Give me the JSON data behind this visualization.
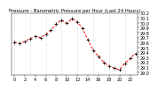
{
  "title": "Pressure - Barometric Pressure per Hour (Last 24 Hours)",
  "hours": [
    0,
    1,
    2,
    3,
    4,
    5,
    6,
    7,
    8,
    9,
    10,
    11,
    12,
    13,
    14,
    15,
    16,
    17,
    18,
    19,
    20,
    21,
    22,
    23
  ],
  "pressure": [
    29.61,
    29.58,
    29.62,
    29.68,
    29.72,
    29.7,
    29.76,
    29.85,
    29.98,
    30.05,
    29.99,
    30.08,
    30.02,
    29.88,
    29.65,
    29.45,
    29.32,
    29.2,
    29.12,
    29.08,
    29.05,
    29.18,
    29.28,
    29.38
  ],
  "line_color": "#ff0000",
  "marker_color": "#000000",
  "grid_color": "#bbbbbb",
  "background_color": "#ffffff",
  "ylim_min": 28.95,
  "ylim_max": 30.2,
  "ytick_values": [
    29.0,
    29.1,
    29.2,
    29.3,
    29.4,
    29.5,
    29.6,
    29.7,
    29.8,
    29.9,
    30.0,
    30.1,
    30.2
  ],
  "xtick_positions": [
    0,
    2,
    4,
    6,
    8,
    10,
    12,
    14,
    16,
    18,
    20,
    22
  ],
  "grid_xtick_positions": [
    0,
    3,
    6,
    9,
    12,
    15,
    18,
    21
  ],
  "xlabel_fontsize": 3.5,
  "ylabel_fontsize": 3.5,
  "title_fontsize": 3.8,
  "line_width": 0.7,
  "marker_size": 2.5
}
